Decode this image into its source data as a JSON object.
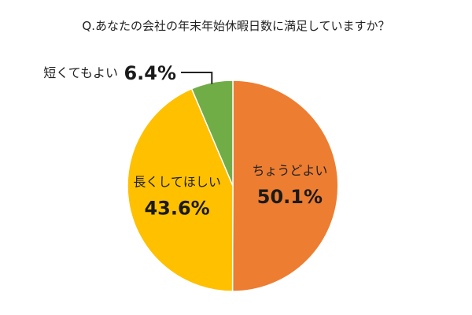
{
  "chart_data": {
    "type": "pie",
    "title": "Q.あなたの会社の年末年始休暇日数に満足していますか？",
    "slices": [
      {
        "label": "ちょうどよい",
        "value": 50.1,
        "display": "50.1%",
        "color": "#ed7d31"
      },
      {
        "label": "長くしてほしい",
        "value": 43.6,
        "display": "43.6%",
        "color": "#ffc000"
      },
      {
        "label": "短くてもよい",
        "value": 6.4,
        "display": "6.4%",
        "color": "#70ad47"
      }
    ],
    "start": "12 o'clock",
    "direction": "clockwise",
    "legend": "none"
  }
}
